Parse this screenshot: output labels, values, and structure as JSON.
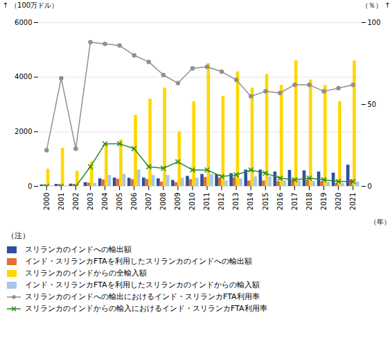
{
  "chart_data": {
    "type": "bar",
    "categories": [
      "2000",
      "2001",
      "2002",
      "2003",
      "2004",
      "2005",
      "2006",
      "2007",
      "2008",
      "2009",
      "2010",
      "2011",
      "2012",
      "2013",
      "2014",
      "2015",
      "2016",
      "2017",
      "2018",
      "2019",
      "2020",
      "2021"
    ],
    "series": [
      {
        "name": "スリランカのインドへの輸出額",
        "type": "bar",
        "color": "#2e4f9e",
        "values": [
          55,
          75,
          85,
          140,
          280,
          310,
          300,
          310,
          280,
          220,
          370,
          440,
          430,
          470,
          600,
          600,
          530,
          590,
          570,
          530,
          490,
          780
        ]
      },
      {
        "name": "インド・スリランカFTAを利用したスリランカのインドへの輸出額",
        "type": "bar",
        "color": "#e07030",
        "values": [
          45,
          60,
          70,
          120,
          240,
          265,
          250,
          260,
          160,
          140,
          250,
          330,
          300,
          310,
          200,
          200,
          175,
          210,
          215,
          165,
          100,
          235
        ]
      },
      {
        "name": "スリランカのインドからの全輸入額",
        "type": "bar",
        "color": "#ffd700",
        "values": [
          630,
          1400,
          560,
          900,
          1550,
          1700,
          2600,
          3200,
          3600,
          2000,
          3100,
          4500,
          3300,
          4200,
          3600,
          4100,
          3700,
          4600,
          3900,
          3700,
          3100,
          4600
        ]
      },
      {
        "name": "インド・スリランカFTAを利用したスリランカのインドからの輸入額",
        "type": "bar",
        "color": "#a8c8e8",
        "values": [
          0,
          0,
          0,
          110,
          400,
          450,
          600,
          400,
          400,
          300,
          300,
          450,
          200,
          280,
          350,
          350,
          200,
          200,
          180,
          150,
          100,
          160
        ]
      },
      {
        "name": "スリランカのインドへの輸出におけるインド・スリランカFTA利用率",
        "type": "line",
        "axis": "y2",
        "color": "#909090",
        "marker": "circle",
        "values": [
          22,
          66,
          23,
          88,
          87,
          86,
          80,
          76,
          68,
          63,
          72,
          73,
          70,
          65,
          55,
          58,
          57,
          62,
          62,
          58,
          60,
          62
        ]
      },
      {
        "name": "スリランカのインドからの輸入におけるインド・スリランカFTA利用率",
        "type": "line",
        "axis": "y2",
        "color": "#2a8a20",
        "marker": "x",
        "values": [
          0,
          0,
          0,
          12,
          26,
          26,
          23,
          12,
          11,
          15,
          10,
          10,
          6,
          7,
          10,
          8,
          5,
          4,
          5,
          4,
          3,
          3
        ]
      }
    ],
    "ylabel": "（100万ドル）",
    "y2label": "（％）",
    "xlabel": "（年）",
    "annotations": [
      "（注）"
    ],
    "ylim": [
      0,
      6000
    ],
    "yticks": [
      0,
      2000,
      4000,
      6000
    ],
    "y2lim": [
      0,
      100
    ],
    "y2ticks": [
      0,
      50,
      100
    ],
    "grid": true,
    "legend": "bottom"
  }
}
